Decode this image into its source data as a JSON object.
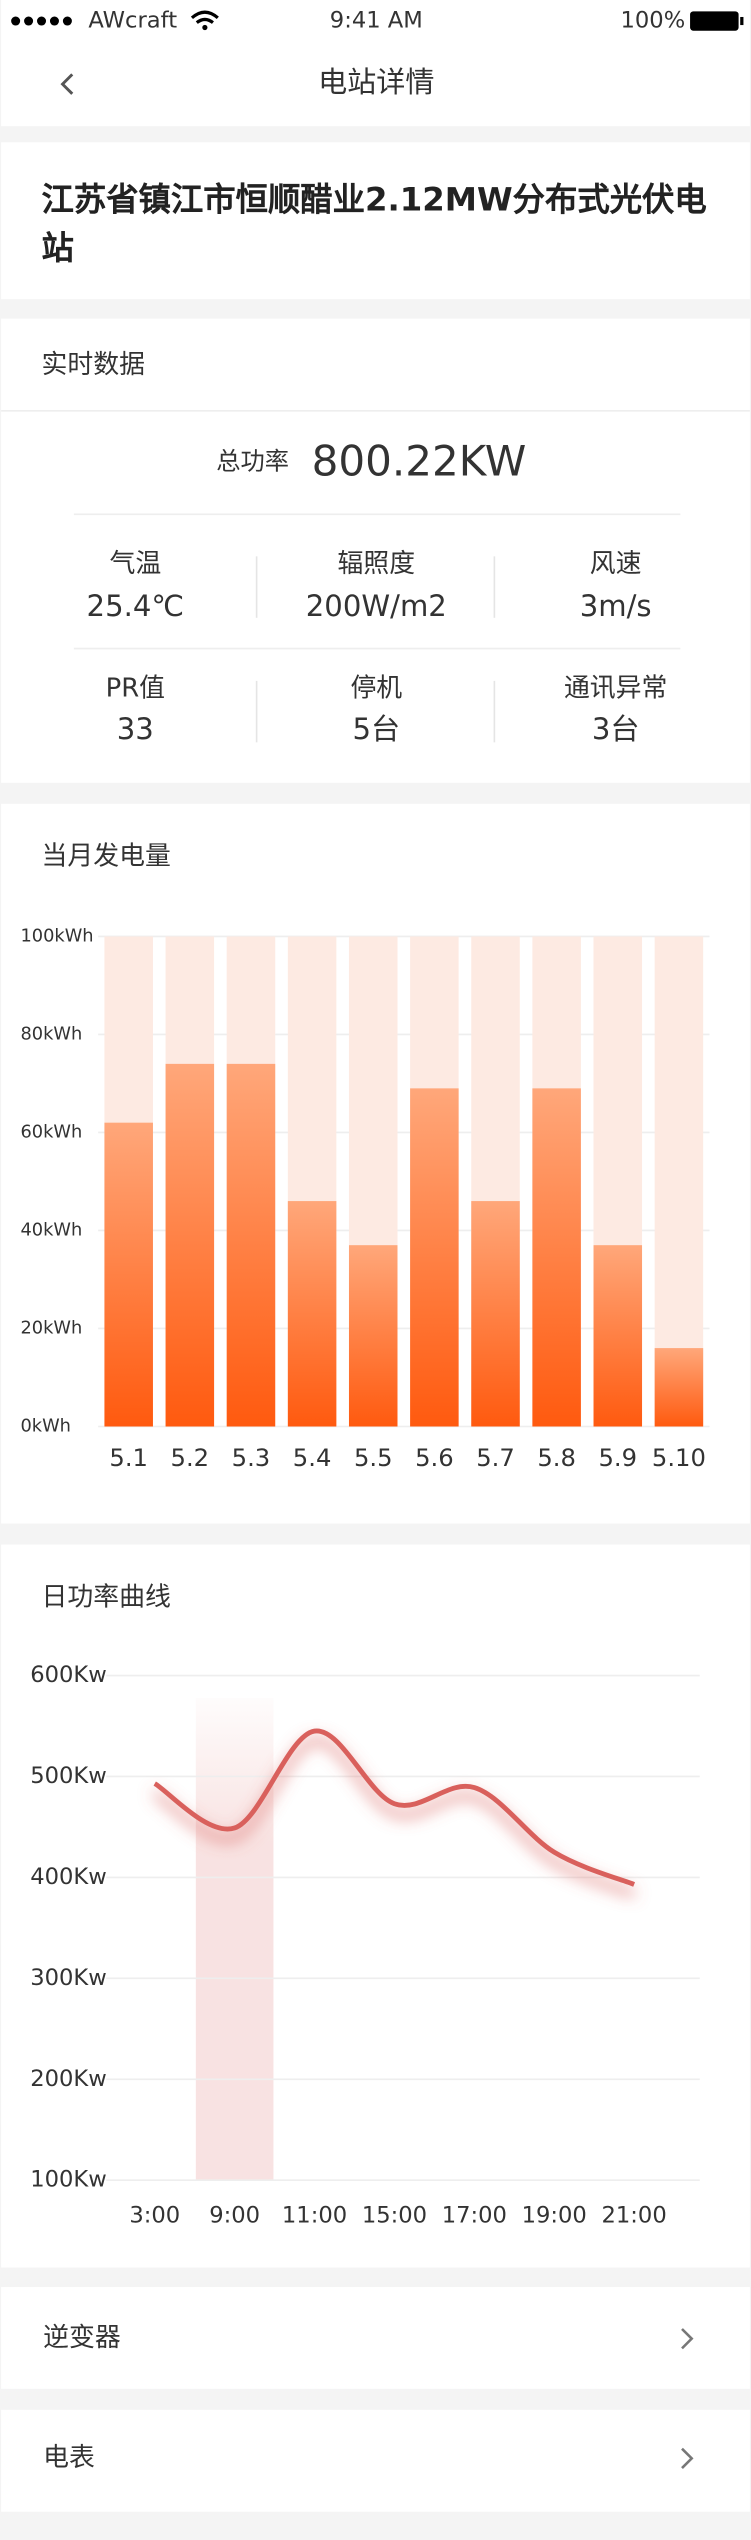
{
  "status_bar": {
    "carrier": "AWcraft",
    "time": "9:41 AM",
    "battery": "100%"
  },
  "header": {
    "title": "电站详情"
  },
  "station": {
    "name": "江苏省镇江市恒顺醋业2.12MW分布式光伏电站"
  },
  "realtime": {
    "title": "实时数据",
    "total_label": "总功率",
    "total_value": "800.22KW",
    "items": [
      {
        "label": "气温",
        "value": "25.4℃"
      },
      {
        "label": "辐照度",
        "value": "200W/m2"
      },
      {
        "label": "风速",
        "value": "3m/s"
      },
      {
        "label": "PR值",
        "value": "33"
      },
      {
        "label": "停机",
        "value": "5台"
      },
      {
        "label": "通讯异常",
        "value": "3台"
      }
    ]
  },
  "chart_data": [
    {
      "type": "bar",
      "title": "当月发电量",
      "categories": [
        "5.1",
        "5.2",
        "5.3",
        "5.4",
        "5.5",
        "5.6",
        "5.7",
        "5.8",
        "5.9",
        "5.10"
      ],
      "values": [
        62,
        74,
        74,
        46,
        37,
        69,
        46,
        69,
        37,
        16
      ],
      "color": "#ff5a0f",
      "background_color": "#fdeae2",
      "ylim": [
        0,
        100
      ],
      "yticks": [
        {
          "value": 0,
          "label": "0kWh"
        },
        {
          "value": 20,
          "label": "20kWh"
        },
        {
          "value": 40,
          "label": "40kWh"
        },
        {
          "value": 60,
          "label": "60kWh"
        },
        {
          "value": 80,
          "label": "80kWh"
        },
        {
          "value": 100,
          "label": "100kWh"
        }
      ],
      "grid": true
    },
    {
      "type": "line",
      "title": "日功率曲线",
      "categories": [
        "3:00",
        "9:00",
        "11:00",
        "15:00",
        "17:00",
        "19:00",
        "21:00"
      ],
      "values": [
        493,
        449,
        545,
        473,
        489,
        425,
        393
      ],
      "color": "#d9605c",
      "highlight_index": 1,
      "highlight_color": "#d9605c",
      "ylim": [
        100,
        600
      ],
      "yticks": [
        {
          "value": 100,
          "label": "100Kw"
        },
        {
          "value": 200,
          "label": "200Kw"
        },
        {
          "value": 300,
          "label": "300Kw"
        },
        {
          "value": 400,
          "label": "400Kw"
        },
        {
          "value": 500,
          "label": "500Kw"
        },
        {
          "value": 600,
          "label": "600Kw"
        }
      ],
      "grid": true
    }
  ],
  "menu": [
    {
      "label": "逆变器"
    },
    {
      "label": "电表"
    }
  ]
}
